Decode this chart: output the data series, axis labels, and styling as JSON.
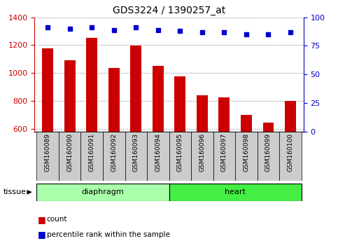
{
  "title": "GDS3224 / 1390257_at",
  "samples": [
    "GSM160089",
    "GSM160090",
    "GSM160091",
    "GSM160092",
    "GSM160093",
    "GSM160094",
    "GSM160095",
    "GSM160096",
    "GSM160097",
    "GSM160098",
    "GSM160099",
    "GSM160100"
  ],
  "counts": [
    1175,
    1090,
    1255,
    1035,
    1195,
    1050,
    975,
    840,
    825,
    700,
    645,
    800
  ],
  "percentiles": [
    91,
    90,
    91,
    89,
    91,
    89,
    88,
    87,
    87,
    85,
    85,
    87
  ],
  "tissue_groups": [
    {
      "label": "diaphragm",
      "start": 0,
      "end": 5,
      "color": "#AAFFAA"
    },
    {
      "label": "heart",
      "start": 6,
      "end": 11,
      "color": "#44EE44"
    }
  ],
  "ylim_left": [
    580,
    1400
  ],
  "ylim_right": [
    0,
    100
  ],
  "yticks_left": [
    600,
    800,
    1000,
    1200,
    1400
  ],
  "yticks_right": [
    0,
    25,
    50,
    75,
    100
  ],
  "bar_color": "#CC0000",
  "dot_color": "#0000CC",
  "bar_width": 0.5,
  "background_color": "#FFFFFF",
  "legend_count_label": "count",
  "legend_pct_label": "percentile rank within the sample",
  "tissue_label": "tissue",
  "grid_color": "#888888",
  "label_bg": "#CCCCCC",
  "tick_fontsize": 8,
  "title_fontsize": 10
}
